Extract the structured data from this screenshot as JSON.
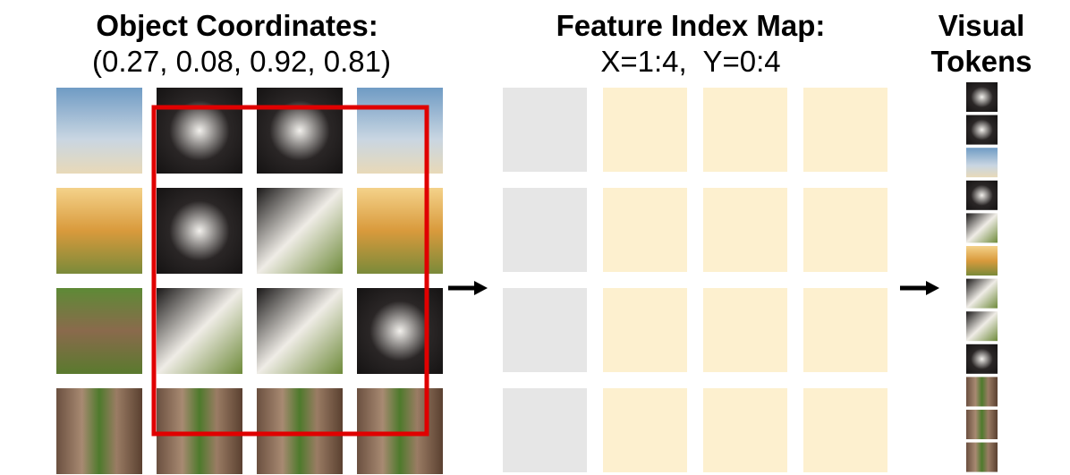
{
  "left": {
    "title": "Object Coordinates:",
    "coordinates": "(0.27, 0.08, 0.92, 0.81)"
  },
  "middle": {
    "title": "Feature Index Map:",
    "indices": "X=1:4,  Y=0:4"
  },
  "right": {
    "title_line1": "Visual",
    "title_line2": "Tokens"
  }
}
